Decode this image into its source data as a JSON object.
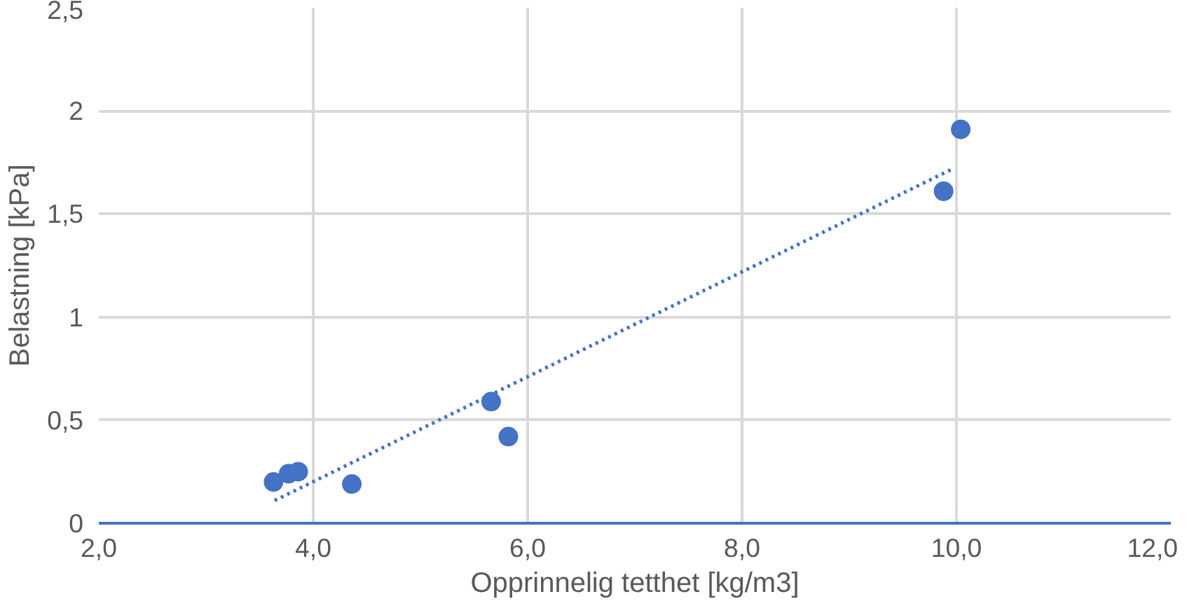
{
  "chart_data": {
    "type": "scatter",
    "xlabel": "Opprinnelig tetthet [kg/m3]",
    "ylabel": "Belastning [kPa]",
    "x": [
      3.63,
      3.77,
      3.86,
      4.36,
      5.66,
      5.82,
      9.88,
      10.04
    ],
    "series": [
      {
        "color": "#4472c4",
        "values": [
          0.2,
          0.24,
          0.25,
          0.19,
          0.59,
          0.42,
          1.61,
          1.91
        ],
        "marker": "circle"
      },
      {
        "type": "line",
        "color": "#4472c4",
        "x": [
          3.64,
          9.97
        ],
        "values": [
          0.11,
          1.72
        ],
        "line_style": "dotted",
        "marker": "none"
      }
    ],
    "xlim": [
      2,
      12
    ],
    "ylim": [
      0,
      2.5
    ],
    "xticks": [
      {
        "value": 2,
        "label": "2,0"
      },
      {
        "value": 4,
        "label": "4,0"
      },
      {
        "value": 6,
        "label": "6,0"
      },
      {
        "value": 8,
        "label": "8,0"
      },
      {
        "value": 10,
        "label": "10,0"
      },
      {
        "value": 12,
        "label": "12,0"
      }
    ],
    "yticks": [
      0,
      {
        "value": 0.5,
        "label": "0,5"
      },
      1,
      {
        "value": 1.5,
        "label": "1,5"
      },
      2,
      {
        "value": 2.5,
        "label": "2,5"
      }
    ],
    "grid": true
  }
}
